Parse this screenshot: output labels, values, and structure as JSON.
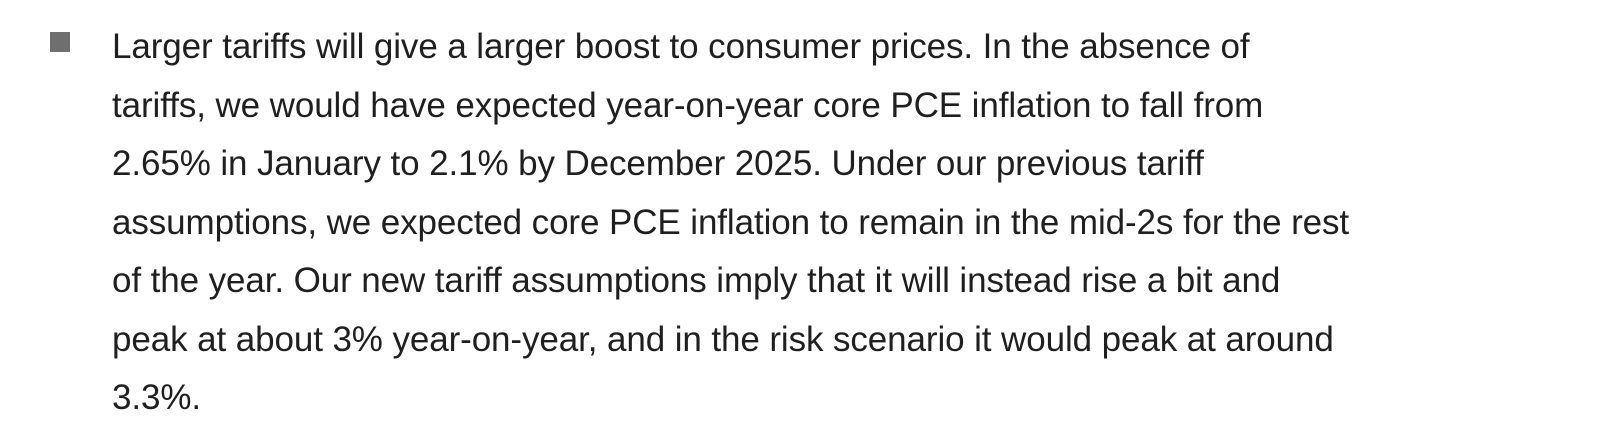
{
  "bullet": {
    "marker_color": "#6f6f6f",
    "lines": [
      "Larger tariffs will give a larger boost to consumer prices.  In the absence of",
      "tariffs, we would have expected year-on-year core PCE inflation to fall from",
      "2.65% in January to 2.1% by December 2025.  Under our previous tariff",
      "assumptions, we expected core PCE inflation to remain in the mid-2s for the rest",
      "of the year.  Our new tariff assumptions imply that it will instead rise a bit and",
      "peak at about 3% year-on-year, and in the risk scenario it would peak at around",
      "3.3%."
    ]
  }
}
